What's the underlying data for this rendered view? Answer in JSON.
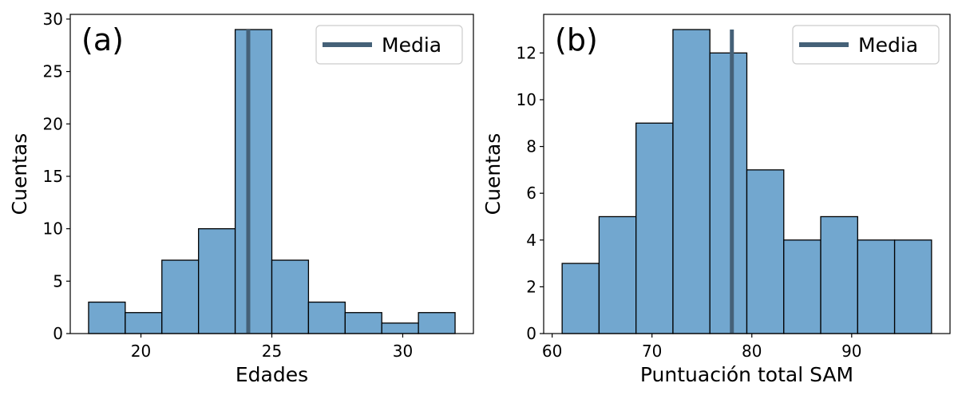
{
  "chart_data": [
    {
      "type": "bar",
      "panel_label": "(a)",
      "xlabel": "Edades",
      "ylabel": "Cuentas",
      "bin_edges": [
        18.0,
        19.4,
        20.8,
        22.2,
        23.6,
        25.0,
        26.4,
        27.8,
        29.2,
        30.6,
        32.0
      ],
      "values": [
        3,
        2,
        7,
        10,
        29,
        7,
        3,
        2,
        1,
        2
      ],
      "mean": 24.1,
      "xlim": [
        17.3,
        32.7
      ],
      "ylim": [
        0,
        30.45
      ],
      "xticks": [
        20,
        25,
        30
      ],
      "yticks": [
        0,
        5,
        10,
        15,
        20,
        25,
        30
      ],
      "legend": {
        "label": "Media",
        "placement": "upper right"
      },
      "bar_color": "#72a7cf",
      "mean_color": "#456178"
    },
    {
      "type": "bar",
      "panel_label": "(b)",
      "xlabel": "Puntuación total SAM",
      "ylabel": "Cuentas",
      "bin_edges": [
        61.0,
        64.7,
        68.4,
        72.1,
        75.8,
        79.5,
        83.2,
        86.9,
        90.6,
        94.3,
        98.0
      ],
      "values": [
        3,
        5,
        9,
        13,
        12,
        7,
        4,
        5,
        4,
        4
      ],
      "mean": 78.0,
      "xlim": [
        59.15,
        99.85
      ],
      "ylim": [
        0,
        13.65
      ],
      "xticks": [
        60,
        70,
        80,
        90
      ],
      "yticks": [
        0,
        2,
        4,
        6,
        8,
        10,
        12
      ],
      "legend": {
        "label": "Media",
        "placement": "upper right"
      },
      "bar_color": "#72a7cf",
      "mean_color": "#456178"
    }
  ]
}
